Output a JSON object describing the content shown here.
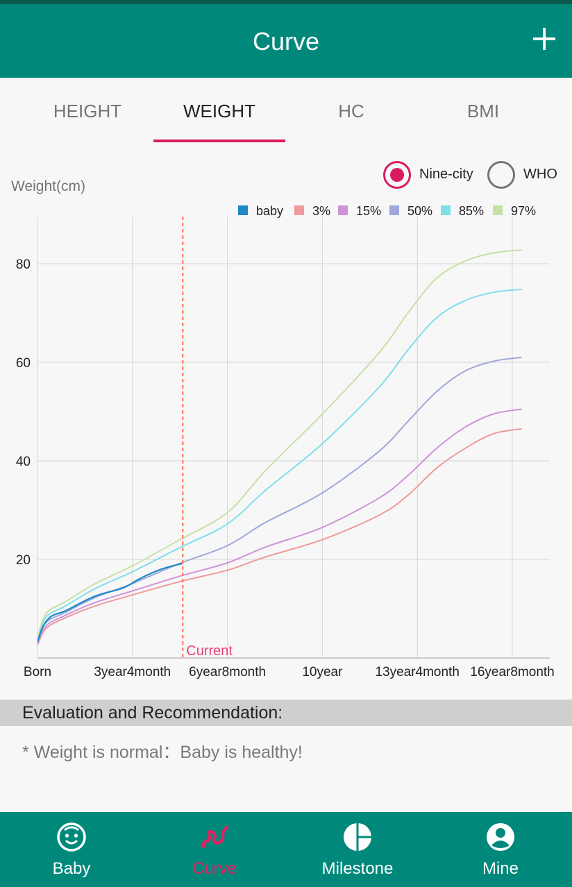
{
  "header": {
    "title": "Curve",
    "add_icon": "plus-icon"
  },
  "tabs": [
    {
      "label": "HEIGHT",
      "active": false
    },
    {
      "label": "WEIGHT",
      "active": true
    },
    {
      "label": "HC",
      "active": false
    },
    {
      "label": "BMI",
      "active": false
    }
  ],
  "source_toggle": {
    "options": [
      {
        "label": "Nine-city",
        "checked": true
      },
      {
        "label": "WHO",
        "checked": false
      }
    ]
  },
  "chart_data": {
    "type": "line",
    "ylabel": "Weight(cm)",
    "ylim": [
      0,
      90
    ],
    "yticks": [
      20,
      40,
      60,
      80
    ],
    "xlim": [
      0,
      16.2
    ],
    "xticks": [
      {
        "v": 0,
        "label": "Born"
      },
      {
        "v": 3.333,
        "label": "3year4month"
      },
      {
        "v": 6.667,
        "label": "6year8month"
      },
      {
        "v": 10,
        "label": "10year"
      },
      {
        "v": 13.333,
        "label": "13year4month"
      },
      {
        "v": 16.667,
        "label": "16year8month"
      }
    ],
    "grid": true,
    "legend_position": "top-right",
    "current_marker": {
      "x": 5.1,
      "label": "Current",
      "color": "#ff7043"
    },
    "series": [
      {
        "name": "baby",
        "color": "#1e88c9",
        "points": [
          [
            0,
            3.2
          ],
          [
            0.2,
            6.5
          ],
          [
            0.5,
            8.5
          ],
          [
            1,
            9.6
          ],
          [
            2,
            12.5
          ],
          [
            3,
            14.2
          ],
          [
            3.5,
            15.8
          ],
          [
            4,
            17.2
          ],
          [
            4.5,
            18.3
          ],
          [
            5.1,
            19.2
          ]
        ]
      },
      {
        "name": "3%",
        "color": "#ef9a9a",
        "points": [
          [
            0,
            2.6
          ],
          [
            0.3,
            6.0
          ],
          [
            1,
            8.2
          ],
          [
            2,
            10.5
          ],
          [
            3.333,
            12.8
          ],
          [
            5,
            15.5
          ],
          [
            6.667,
            17.8
          ],
          [
            8,
            20.5
          ],
          [
            10,
            24
          ],
          [
            12,
            29
          ],
          [
            13,
            33
          ],
          [
            14,
            38.5
          ],
          [
            15,
            42.5
          ],
          [
            16,
            45.5
          ],
          [
            17,
            46.5
          ],
          [
            18,
            47
          ]
        ]
      },
      {
        "name": "15%",
        "color": "#ce93d8",
        "points": [
          [
            0,
            2.9
          ],
          [
            0.3,
            6.5
          ],
          [
            1,
            8.7
          ],
          [
            2,
            11.2
          ],
          [
            3.333,
            13.6
          ],
          [
            5,
            16.6
          ],
          [
            6.667,
            19.3
          ],
          [
            8,
            22.5
          ],
          [
            10,
            26.5
          ],
          [
            12,
            32.5
          ],
          [
            13,
            37
          ],
          [
            14,
            42.5
          ],
          [
            15,
            46.8
          ],
          [
            16,
            49.5
          ],
          [
            17,
            50.5
          ],
          [
            18,
            51
          ]
        ]
      },
      {
        "name": "50%",
        "color": "#9fa8da",
        "points": [
          [
            0,
            3.3
          ],
          [
            0.3,
            7.2
          ],
          [
            1,
            9.3
          ],
          [
            2,
            12.2
          ],
          [
            3.333,
            15.1
          ],
          [
            5,
            19.2
          ],
          [
            6.667,
            22.8
          ],
          [
            8,
            27.5
          ],
          [
            10,
            33.5
          ],
          [
            12,
            42
          ],
          [
            13,
            48
          ],
          [
            14,
            54
          ],
          [
            15,
            58.2
          ],
          [
            16,
            60.2
          ],
          [
            17,
            61
          ],
          [
            18,
            61.5
          ]
        ]
      },
      {
        "name": "85%",
        "color": "#80deea",
        "points": [
          [
            0,
            3.7
          ],
          [
            0.3,
            8.3
          ],
          [
            1,
            10.6
          ],
          [
            2,
            14
          ],
          [
            3.333,
            17.5
          ],
          [
            5,
            22.4
          ],
          [
            6.667,
            27.2
          ],
          [
            8,
            34
          ],
          [
            10,
            43.5
          ],
          [
            12,
            55
          ],
          [
            13,
            62.5
          ],
          [
            14,
            69
          ],
          [
            15,
            72.5
          ],
          [
            16,
            74.2
          ],
          [
            17,
            74.8
          ],
          [
            18,
            75.2
          ]
        ]
      },
      {
        "name": "97%",
        "color": "#c5e1a5",
        "points": [
          [
            0,
            4.0
          ],
          [
            0.3,
            9.0
          ],
          [
            1,
            11.5
          ],
          [
            2,
            15
          ],
          [
            3.333,
            18.7
          ],
          [
            5,
            24
          ],
          [
            6.667,
            29.5
          ],
          [
            8,
            38
          ],
          [
            10,
            49.5
          ],
          [
            12,
            62
          ],
          [
            13,
            70
          ],
          [
            14,
            77
          ],
          [
            15,
            80.5
          ],
          [
            16,
            82.2
          ],
          [
            17,
            82.8
          ],
          [
            18,
            83
          ]
        ]
      }
    ]
  },
  "evaluation": {
    "title": "Evaluation and Recommendation:",
    "text": "* Weight is normal：Baby is healthy!"
  },
  "bottom_nav": [
    {
      "label": "Baby",
      "icon": "baby-face-icon",
      "active": false
    },
    {
      "label": "Curve",
      "icon": "curve-icon",
      "active": true
    },
    {
      "label": "Milestone",
      "icon": "milestone-icon",
      "active": false
    },
    {
      "label": "Mine",
      "icon": "person-icon",
      "active": false
    }
  ]
}
